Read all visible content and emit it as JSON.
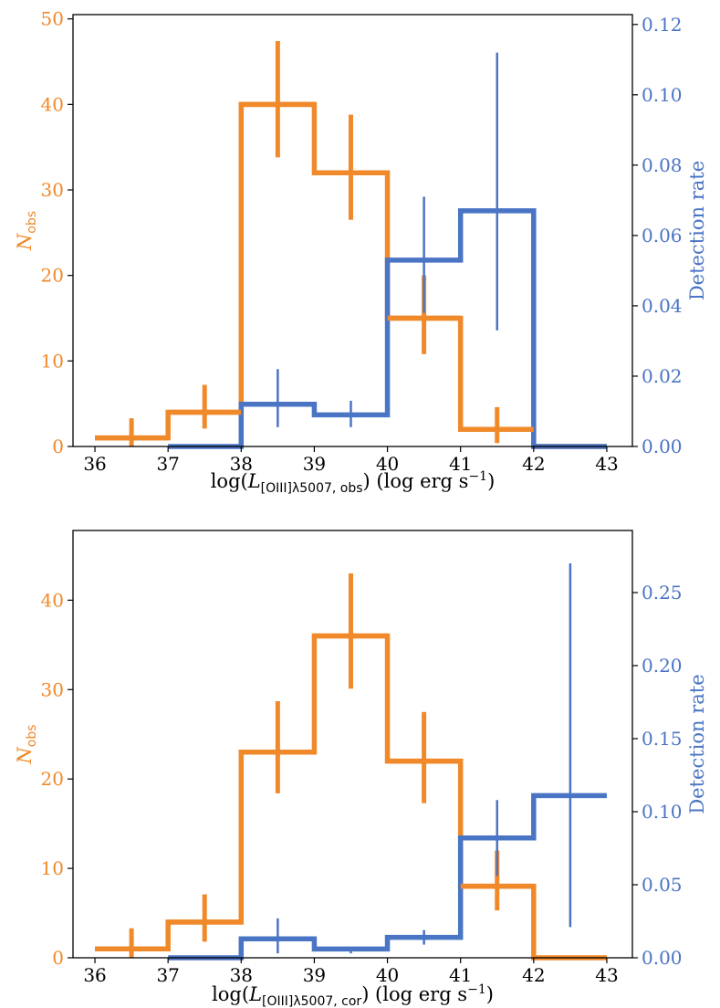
{
  "colors": {
    "orange": "#F0892A",
    "blue": "#4A74C4",
    "axis": "#000000"
  },
  "chart_data": [
    {
      "type": "histogram",
      "xlabel_parts": {
        "prefix": "log(",
        "var": "L",
        "sub": "[OIII]λ5007, obs",
        "suffix": ") (log erg s",
        "sup": "−1",
        "close": ")"
      },
      "ylabel_left_parts": {
        "var": "N",
        "sub": "obs"
      },
      "ylabel_right": "Detection rate",
      "x_ticks": [
        "36",
        "37",
        "38",
        "39",
        "40",
        "41",
        "42",
        "43"
      ],
      "xlim": [
        35.7,
        43.35
      ],
      "ylim_left": [
        0,
        50.5
      ],
      "ylim_right": [
        0,
        0.1228
      ],
      "left_ticks": [
        "0",
        "10",
        "20",
        "30",
        "40",
        "50"
      ],
      "right_ticks": [
        "0.00",
        "0.02",
        "0.04",
        "0.06",
        "0.08",
        "0.10",
        "0.12"
      ],
      "bin_edges": [
        36,
        37,
        38,
        39,
        40,
        41,
        42,
        43
      ],
      "n_obs": {
        "name": "N_obs",
        "values": [
          1,
          4,
          40,
          32,
          15,
          2,
          0
        ],
        "errors": [
          {
            "x": 36.5,
            "lo": 0,
            "hi": 3.3
          },
          {
            "x": 37.5,
            "lo": 2.1,
            "hi": 7.2
          },
          {
            "x": 38.5,
            "lo": 33.8,
            "hi": 47.4
          },
          {
            "x": 39.5,
            "lo": 26.5,
            "hi": 38.8
          },
          {
            "x": 40.5,
            "lo": 10.8,
            "hi": 20
          },
          {
            "x": 41.5,
            "lo": 0.4,
            "hi": 4.6
          }
        ]
      },
      "detection_rate": {
        "name": "Detection rate",
        "x_start": 37,
        "values": [
          0,
          0.012,
          0.009,
          0.053,
          0.067,
          0
        ],
        "errors": [
          {
            "x": 38.5,
            "lo": 0.0055,
            "hi": 0.022
          },
          {
            "x": 39.5,
            "lo": 0.0055,
            "hi": 0.013
          },
          {
            "x": 40.5,
            "lo": 0.038,
            "hi": 0.071
          },
          {
            "x": 41.5,
            "lo": 0.033,
            "hi": 0.112
          }
        ]
      }
    },
    {
      "type": "histogram",
      "xlabel_parts": {
        "prefix": "log(",
        "var": "L",
        "sub": "[OIII]λ5007, cor",
        "suffix": ") (log erg s",
        "sup": "−1",
        "close": ")"
      },
      "ylabel_left_parts": {
        "var": "N",
        "sub": "obs"
      },
      "ylabel_right": "Detection rate",
      "x_ticks": [
        "36",
        "37",
        "38",
        "39",
        "40",
        "41",
        "42",
        "43"
      ],
      "xlim": [
        35.7,
        43.35
      ],
      "ylim_left": [
        0,
        47.8
      ],
      "ylim_right": [
        0,
        0.2925
      ],
      "left_ticks": [
        "0",
        "10",
        "20",
        "30",
        "40"
      ],
      "right_ticks": [
        "0.00",
        "0.05",
        "0.10",
        "0.15",
        "0.20",
        "0.25"
      ],
      "bin_edges": [
        36,
        37,
        38,
        39,
        40,
        41,
        42,
        43
      ],
      "n_obs": {
        "name": "N_obs",
        "values": [
          1,
          4,
          23,
          36,
          22,
          8,
          0
        ],
        "errors": [
          {
            "x": 36.5,
            "lo": 0,
            "hi": 3.3
          },
          {
            "x": 37.5,
            "lo": 1.8,
            "hi": 7.1
          },
          {
            "x": 38.5,
            "lo": 18.4,
            "hi": 28.7
          },
          {
            "x": 39.5,
            "lo": 30.1,
            "hi": 43
          },
          {
            "x": 40.5,
            "lo": 17.3,
            "hi": 27.5
          },
          {
            "x": 41.5,
            "lo": 5.3,
            "hi": 12
          }
        ]
      },
      "detection_rate": {
        "name": "Detection rate",
        "x_start": 37,
        "values": [
          0,
          0.013,
          0.006,
          0.014,
          0.082,
          0.111
        ],
        "errors": [
          {
            "x": 38.5,
            "lo": 0.003,
            "hi": 0.027
          },
          {
            "x": 39.5,
            "lo": 0.003,
            "hi": 0.007
          },
          {
            "x": 40.5,
            "lo": 0.009,
            "hi": 0.019
          },
          {
            "x": 41.5,
            "lo": 0.056,
            "hi": 0.108
          },
          {
            "x": 42.5,
            "lo": 0.021,
            "hi": 0.27
          }
        ]
      }
    }
  ]
}
